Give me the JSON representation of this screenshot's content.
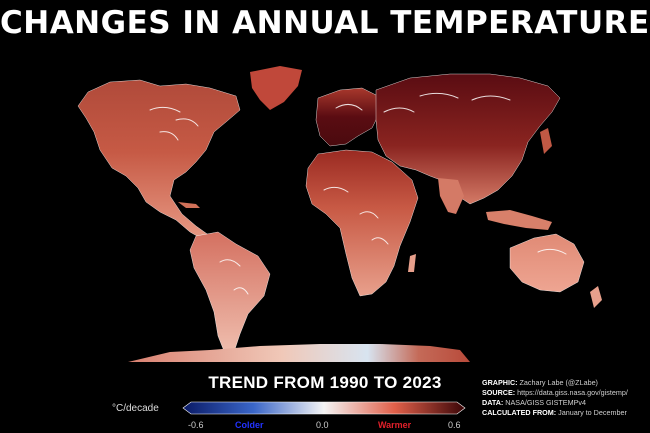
{
  "title": "CHANGES IN ANNUAL TEMPERATURES",
  "trend_label": "TREND FROM 1990 TO 2023",
  "colorbar": {
    "unit": "°C/decade",
    "ticks": [
      "-0.6",
      "0.0",
      "0.6"
    ],
    "range": [
      -0.6,
      0.6
    ],
    "colder_label": "Colder",
    "warmer_label": "Warmer",
    "colors": {
      "cold_end": "#0a1a66",
      "cold_mid": "#3a66c8",
      "neutral": "#f4f4f4",
      "warm_mid": "#e0604a",
      "warm_end": "#3a0507"
    }
  },
  "credits": {
    "graphic_key": "GRAPHIC:",
    "graphic_value": " Zachary Labe (@ZLabe)",
    "source_key": "SOURCE:",
    "source_value": " https://data.giss.nasa.gov/gistemp/",
    "data_key": "DATA:",
    "data_value": " NASA/GISS GISTEMPv4",
    "calc_key": "CALCULATED FROM:",
    "calc_value": " January to December"
  },
  "map_colors": {
    "ocean": "#000000",
    "land_light": "#e6a08c",
    "land_mid": "#c8553f",
    "land_dark": "#5a0c12",
    "land_darkest": "#3a0507",
    "coast": "#ffffff"
  }
}
